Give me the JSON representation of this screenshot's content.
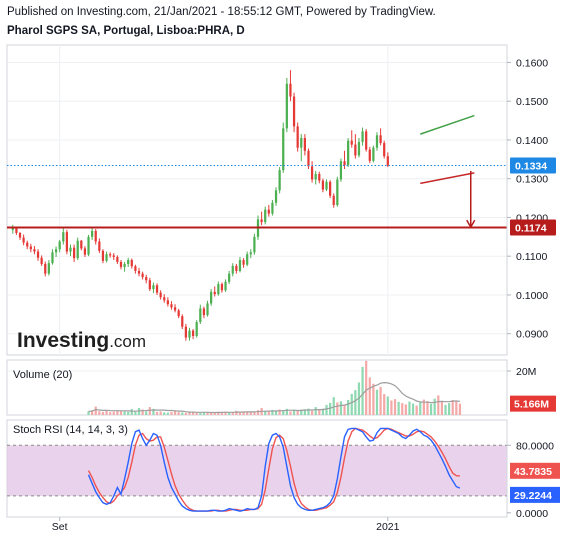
{
  "header": {
    "published": "Published on Investing.com, 21/Jan/2021 - 18:55:12 GMT, Powered by TradingView.",
    "symbol": "Pharol SGPS SA, Portugal, Lisboa:PHRA, D"
  },
  "watermark": {
    "brand": "Investing",
    "suffix": ".com"
  },
  "colors": {
    "up": "#26a69a",
    "down": "#ef5350",
    "candle_up": "#4caf50",
    "candle_down": "#e53935",
    "support_line": "#b71c1c",
    "price_badge": "#1e88e5",
    "trend_top": "#43a047",
    "trend_bottom": "#c62828",
    "stoch_k": "#2962ff",
    "stoch_d": "#ef5350",
    "stoch_band": "#e1c4e6",
    "volume_ma": "#9e9e9e"
  },
  "chart_data": [
    {
      "type": "candlestick",
      "name": "price",
      "y_ticks": [
        "0.1600",
        "0.1500",
        "0.1400",
        "0.1300",
        "0.1200",
        "0.1100",
        "0.1000",
        "0.0900"
      ],
      "ylim": [
        0.0845,
        0.1645
      ],
      "x_ticks": [
        "Set",
        "2021"
      ],
      "x_tick_index": [
        13,
        104
      ],
      "n_bars": 125,
      "ohlc": [
        [
          0.1168,
          0.1181,
          0.1158,
          0.1172
        ],
        [
          0.1172,
          0.1175,
          0.1155,
          0.116
        ],
        [
          0.116,
          0.1162,
          0.1142,
          0.1148
        ],
        [
          0.1148,
          0.1156,
          0.1128,
          0.1135
        ],
        [
          0.1135,
          0.114,
          0.1118,
          0.1125
        ],
        [
          0.1125,
          0.1132,
          0.111,
          0.1118
        ],
        [
          0.1118,
          0.1126,
          0.1105,
          0.1112
        ],
        [
          0.1112,
          0.1118,
          0.1088,
          0.1096
        ],
        [
          0.1096,
          0.1102,
          0.1075,
          0.108
        ],
        [
          0.108,
          0.1086,
          0.1048,
          0.1055
        ],
        [
          0.1055,
          0.109,
          0.105,
          0.1082
        ],
        [
          0.1082,
          0.1118,
          0.1078,
          0.111
        ],
        [
          0.111,
          0.1125,
          0.1098,
          0.1118
        ],
        [
          0.1118,
          0.1142,
          0.111,
          0.1138
        ],
        [
          0.1138,
          0.1175,
          0.113,
          0.1162
        ],
        [
          0.1162,
          0.1168,
          0.1105,
          0.1112
        ],
        [
          0.1112,
          0.113,
          0.11,
          0.1122
        ],
        [
          0.1122,
          0.113,
          0.1085,
          0.1095
        ],
        [
          0.1095,
          0.1148,
          0.109,
          0.114
        ],
        [
          0.114,
          0.1142,
          0.1115,
          0.112
        ],
        [
          0.112,
          0.1126,
          0.1098,
          0.1104
        ],
        [
          0.1104,
          0.1155,
          0.11,
          0.115
        ],
        [
          0.115,
          0.1172,
          0.1142,
          0.1165
        ],
        [
          0.1165,
          0.117,
          0.113,
          0.1138
        ],
        [
          0.1138,
          0.1146,
          0.1108,
          0.1114
        ],
        [
          0.1114,
          0.1118,
          0.1082,
          0.1088
        ],
        [
          0.1088,
          0.1112,
          0.1084,
          0.1105
        ],
        [
          0.1105,
          0.111,
          0.1096,
          0.1102
        ],
        [
          0.1102,
          0.1108,
          0.109,
          0.1098
        ],
        [
          0.1098,
          0.1102,
          0.108,
          0.1085
        ],
        [
          0.1085,
          0.109,
          0.1066,
          0.1072
        ],
        [
          0.1072,
          0.1085,
          0.106,
          0.108
        ],
        [
          0.108,
          0.1096,
          0.1072,
          0.109
        ],
        [
          0.109,
          0.1094,
          0.1068,
          0.1074
        ],
        [
          0.1074,
          0.1078,
          0.1055,
          0.1062
        ],
        [
          0.1062,
          0.107,
          0.1048,
          0.1055
        ],
        [
          0.1055,
          0.106,
          0.104,
          0.1046
        ],
        [
          0.1046,
          0.1052,
          0.103,
          0.1038
        ],
        [
          0.1038,
          0.1044,
          0.101,
          0.1015
        ],
        [
          0.1015,
          0.1032,
          0.1005,
          0.1025
        ],
        [
          0.1025,
          0.103,
          0.1,
          0.1006
        ],
        [
          0.1006,
          0.1012,
          0.0988,
          0.0994
        ],
        [
          0.0994,
          0.1002,
          0.098,
          0.0986
        ],
        [
          0.0986,
          0.0994,
          0.097,
          0.0976
        ],
        [
          0.0976,
          0.0984,
          0.0962,
          0.0968
        ],
        [
          0.0968,
          0.0976,
          0.0955,
          0.096
        ],
        [
          0.096,
          0.0964,
          0.094,
          0.0945
        ],
        [
          0.0945,
          0.095,
          0.0912,
          0.0918
        ],
        [
          0.0918,
          0.0925,
          0.0882,
          0.089
        ],
        [
          0.089,
          0.0915,
          0.0882,
          0.0908
        ],
        [
          0.0908,
          0.0912,
          0.0886,
          0.0894
        ],
        [
          0.0894,
          0.0935,
          0.089,
          0.093
        ],
        [
          0.093,
          0.0975,
          0.0925,
          0.0965
        ],
        [
          0.0965,
          0.097,
          0.094,
          0.0948
        ],
        [
          0.0948,
          0.0985,
          0.0944,
          0.0978
        ],
        [
          0.0978,
          0.1015,
          0.0972,
          0.1008
        ],
        [
          0.1008,
          0.1022,
          0.0996,
          0.1002
        ],
        [
          0.1002,
          0.1035,
          0.0998,
          0.1028
        ],
        [
          0.1028,
          0.1032,
          0.1006,
          0.1012
        ],
        [
          0.1012,
          0.104,
          0.1008,
          0.1034
        ],
        [
          0.1034,
          0.1062,
          0.1028,
          0.1055
        ],
        [
          0.1055,
          0.1082,
          0.1048,
          0.1075
        ],
        [
          0.1075,
          0.108,
          0.1055,
          0.1062
        ],
        [
          0.1062,
          0.1098,
          0.1058,
          0.109
        ],
        [
          0.109,
          0.1095,
          0.107,
          0.1078
        ],
        [
          0.1078,
          0.1112,
          0.1074,
          0.1105
        ],
        [
          0.1105,
          0.1118,
          0.1095,
          0.111
        ],
        [
          0.111,
          0.1158,
          0.1104,
          0.115
        ],
        [
          0.115,
          0.1205,
          0.1142,
          0.1195
        ],
        [
          0.1195,
          0.1215,
          0.118,
          0.1188
        ],
        [
          0.1188,
          0.1228,
          0.1182,
          0.122
        ],
        [
          0.122,
          0.1232,
          0.1202,
          0.121
        ],
        [
          0.121,
          0.1245,
          0.1205,
          0.1238
        ],
        [
          0.1238,
          0.1278,
          0.123,
          0.127
        ],
        [
          0.127,
          0.133,
          0.1262,
          0.1322
        ],
        [
          0.1322,
          0.1445,
          0.1315,
          0.143
        ],
        [
          0.143,
          0.156,
          0.142,
          0.1545
        ],
        [
          0.1545,
          0.158,
          0.15,
          0.1512
        ],
        [
          0.1512,
          0.1522,
          0.142,
          0.1435
        ],
        [
          0.1435,
          0.1445,
          0.137,
          0.138
        ],
        [
          0.138,
          0.1415,
          0.1345,
          0.1405
        ],
        [
          0.1405,
          0.1415,
          0.136,
          0.1372
        ],
        [
          0.1372,
          0.1378,
          0.1325,
          0.1332
        ],
        [
          0.1332,
          0.1345,
          0.129,
          0.1298
        ],
        [
          0.1298,
          0.132,
          0.1285,
          0.1312
        ],
        [
          0.1312,
          0.1318,
          0.1288,
          0.1295
        ],
        [
          0.1295,
          0.13,
          0.1265,
          0.1272
        ],
        [
          0.1272,
          0.1298,
          0.1268,
          0.1292
        ],
        [
          0.1292,
          0.1296,
          0.125,
          0.1256
        ],
        [
          0.1256,
          0.1262,
          0.1225,
          0.1232
        ],
        [
          0.1232,
          0.1305,
          0.1228,
          0.1298
        ],
        [
          0.1298,
          0.1352,
          0.1292,
          0.1345
        ],
        [
          0.1345,
          0.1372,
          0.1325,
          0.1335
        ],
        [
          0.1335,
          0.1405,
          0.133,
          0.1398
        ],
        [
          0.1398,
          0.1425,
          0.138,
          0.1388
        ],
        [
          0.1388,
          0.1415,
          0.1352,
          0.136
        ],
        [
          0.136,
          0.1405,
          0.1355,
          0.1395
        ],
        [
          0.1395,
          0.1432,
          0.1385,
          0.1422
        ],
        [
          0.1422,
          0.1428,
          0.137,
          0.1375
        ],
        [
          0.1375,
          0.1382,
          0.134,
          0.1346
        ],
        [
          0.1346,
          0.1385,
          0.1342,
          0.138
        ],
        [
          0.138,
          0.142,
          0.1372,
          0.1412
        ],
        [
          0.1412,
          0.143,
          0.1386,
          0.1392
        ],
        [
          0.1392,
          0.1398,
          0.1352,
          0.1358
        ],
        [
          0.1358,
          0.1368,
          0.133,
          0.1334
        ]
      ],
      "labels": {
        "last_price": "0.1334",
        "support": "0.1174"
      },
      "support_level": 0.1174,
      "last_price": 0.1334,
      "trendlines": [
        {
          "role": "resistance",
          "from": [
            113,
            0.1415
          ],
          "to": [
            128,
            0.1463
          ]
        },
        {
          "role": "support",
          "from": [
            113,
            0.1288
          ],
          "to": [
            128,
            0.1315
          ]
        }
      ],
      "projection": {
        "from": [
          127,
          0.132
        ],
        "to": [
          127,
          0.1175
        ]
      },
      "grid": true
    },
    {
      "type": "bar",
      "name": "volume",
      "title": "Volume (20)",
      "y_ticks": [
        "20M"
      ],
      "ylim": [
        0,
        25000000
      ],
      "current_label": "5.166M",
      "current_value": 5166000,
      "values": [
        1.6,
        2.0,
        3.8,
        1.7,
        1.4,
        2.2,
        1.3,
        1.5,
        2.0,
        1.8,
        1.6,
        1.4,
        2.7,
        1.5,
        3.2,
        2.5,
        1.6,
        3.6,
        2.8,
        1.4,
        1.6,
        1.2,
        1.1,
        1.4,
        1.9,
        1.3,
        1.2,
        1.0,
        1.1,
        1.3,
        1.0,
        0.9,
        1.2,
        1.4,
        1.0,
        1.1,
        1.5,
        1.3,
        1.6,
        1.2,
        1.1,
        1.9,
        1.3,
        1.5,
        1.6,
        1.2,
        1.4,
        2.2,
        3.2,
        1.8,
        1.5,
        2.3,
        1.7,
        2.5,
        1.9,
        2.8,
        1.6,
        2.4,
        1.8,
        2.5,
        2.6,
        2.9,
        1.9,
        3.6,
        2.4,
        2.9,
        4.6,
        5.5,
        8.1,
        5.7,
        6.2,
        4.3,
        6.8,
        9.6,
        11.3,
        14.8,
        21.9,
        24.6,
        17.1,
        14.2,
        11.5,
        12.8,
        9.5,
        8.4,
        6.6,
        7.2,
        6.0,
        5.4,
        4.8,
        6.1,
        5.2,
        4.3,
        5.7,
        7.0,
        6.3,
        5.1,
        7.4,
        8.9,
        5.9,
        4.6,
        5.4,
        6.8,
        6.2,
        5.166
      ],
      "values_unit": "millions",
      "up_flags": [
        1,
        0,
        0,
        0,
        0,
        0,
        0,
        0,
        0,
        0,
        1,
        1,
        1,
        1,
        1,
        0,
        1,
        0,
        1,
        0,
        0,
        1,
        1,
        0,
        0,
        0,
        1,
        0,
        0,
        0,
        0,
        1,
        1,
        0,
        0,
        0,
        0,
        0,
        0,
        1,
        0,
        0,
        0,
        0,
        0,
        0,
        0,
        0,
        0,
        1,
        0,
        1,
        1,
        0,
        1,
        1,
        0,
        1,
        0,
        1,
        1,
        1,
        0,
        1,
        0,
        1,
        1,
        1,
        1,
        0,
        1,
        0,
        1,
        1,
        1,
        1,
        1,
        0,
        0,
        0,
        1,
        0,
        0,
        1,
        0,
        0,
        1,
        0,
        0,
        1,
        1,
        0,
        1,
        0,
        0,
        1,
        1,
        0,
        0,
        1,
        1,
        0,
        0,
        0
      ],
      "grid": true
    },
    {
      "type": "line",
      "name": "stochastic-rsi",
      "title": "Stoch RSI (14, 14, 3, 3)",
      "y_ticks": [
        "80.0000",
        "0.0000"
      ],
      "ylim": [
        -5,
        110
      ],
      "band": [
        20,
        80
      ],
      "labels": {
        "d": "43.7835",
        "k": "29.2244"
      },
      "series": [
        {
          "role": "k",
          "values": [
            45,
            35,
            25,
            18,
            12,
            10,
            12,
            20,
            30,
            22,
            40,
            60,
            82,
            96,
            98,
            88,
            80,
            86,
            94,
            92,
            80,
            60,
            42,
            30,
            22,
            14,
            8,
            5,
            3,
            2,
            2,
            2,
            2,
            2,
            3,
            3,
            2,
            2,
            3,
            5,
            4,
            3,
            2,
            3,
            5,
            4,
            4,
            6,
            20,
            55,
            82,
            92,
            94,
            90,
            78,
            55,
            32,
            18,
            10,
            6,
            4,
            3,
            3,
            4,
            5,
            6,
            8,
            12,
            20,
            40,
            66,
            90,
            99,
            100,
            100,
            98,
            96,
            90,
            85,
            86,
            95,
            100,
            100,
            100,
            98,
            96,
            94,
            90,
            88,
            92,
            97,
            99,
            96,
            92,
            90,
            86,
            80,
            72,
            64,
            55,
            45,
            38,
            31,
            29.2244
          ]
        },
        {
          "role": "d",
          "values": [
            50,
            42,
            32,
            24,
            18,
            13,
            11,
            14,
            20,
            24,
            30,
            42,
            60,
            80,
            92,
            94,
            88,
            85,
            86,
            90,
            90,
            78,
            62,
            46,
            32,
            22,
            15,
            9,
            5,
            3,
            2,
            2,
            2,
            2,
            2,
            3,
            3,
            2,
            2,
            3,
            4,
            4,
            3,
            3,
            3,
            4,
            4,
            5,
            10,
            27,
            52,
            76,
            89,
            92,
            88,
            74,
            55,
            35,
            20,
            11,
            7,
            4,
            3,
            3,
            4,
            5,
            6,
            9,
            13,
            24,
            42,
            65,
            85,
            96,
            100,
            99,
            98,
            95,
            91,
            88,
            89,
            93,
            98,
            100,
            99,
            97,
            95,
            93,
            91,
            91,
            93,
            96,
            97,
            96,
            93,
            90,
            85,
            79,
            72,
            64,
            55,
            47,
            44,
            43.7835
          ]
        }
      ]
    }
  ]
}
